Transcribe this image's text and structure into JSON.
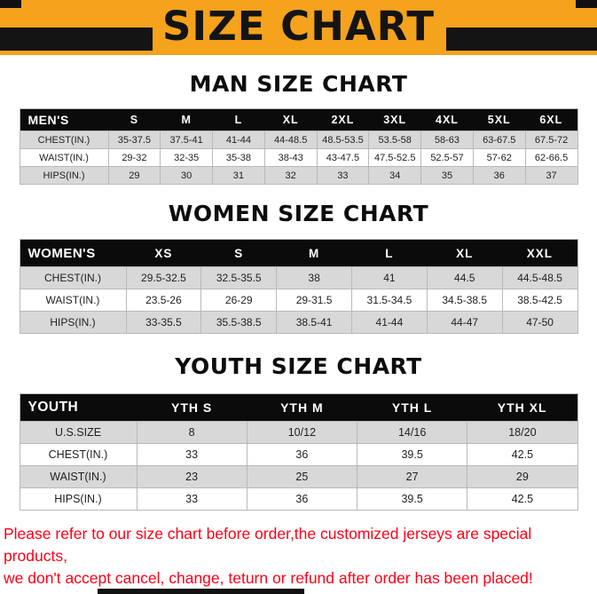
{
  "colors": {
    "banner_bg": "#F5A21D",
    "banner_text": "#141414",
    "bar": "#141414",
    "thead_bg": "#0B0B0B",
    "thead_text": "#FFFFFF",
    "row_alt": "#D8D8D8",
    "row": "#FFFFFF",
    "border": "#B9B9B9",
    "footer": "#FF0016"
  },
  "banner": {
    "title": "SIZE CHART"
  },
  "sections": [
    {
      "heading": "MAN SIZE CHART",
      "table": {
        "header": [
          "MEN'S",
          "S",
          "M",
          "L",
          "XL",
          "2XL",
          "3XL",
          "4XL",
          "5XL",
          "6XL"
        ],
        "rows": [
          [
            "CHEST(IN.)",
            "35-37.5",
            "37.5-41",
            "41-44",
            "44-48.5",
            "48.5-53.5",
            "53.5-58",
            "58-63",
            "63-67.5",
            "67.5-72"
          ],
          [
            "WAIST(IN.)",
            "29-32",
            "32-35",
            "35-38",
            "38-43",
            "43-47.5",
            "47.5-52.5",
            "52.5-57",
            "57-62",
            "62-66.5"
          ],
          [
            "HIPS(IN.)",
            "29",
            "30",
            "31",
            "32",
            "33",
            "34",
            "35",
            "36",
            "37"
          ]
        ]
      }
    },
    {
      "heading": "WOMEN SIZE CHART",
      "table": {
        "header": [
          "WOMEN'S",
          "XS",
          "S",
          "M",
          "L",
          "XL",
          "XXL"
        ],
        "rows": [
          [
            "CHEST(IN.)",
            "29.5-32.5",
            "32.5-35.5",
            "38",
            "41",
            "44.5",
            "44.5-48.5"
          ],
          [
            "WAIST(IN.)",
            "23.5-26",
            "26-29",
            "29-31.5",
            "31.5-34.5",
            "34.5-38.5",
            "38.5-42.5"
          ],
          [
            "HIPS(IN.)",
            "33-35.5",
            "35.5-38.5",
            "38.5-41",
            "41-44",
            "44-47",
            "47-50"
          ]
        ]
      }
    },
    {
      "heading": "YOUTH SIZE CHART",
      "table": {
        "header": [
          "YOUTH",
          "YTH S",
          "YTH M",
          "YTH L",
          "YTH XL"
        ],
        "rows": [
          [
            "U.S.SIZE",
            "8",
            "10/12",
            "14/16",
            "18/20"
          ],
          [
            "CHEST(IN.)",
            "33",
            "36",
            "39.5",
            "42.5"
          ],
          [
            "WAIST(IN.)",
            "23",
            "25",
            "27",
            "29"
          ],
          [
            "HIPS(IN.)",
            "33",
            "36",
            "39.5",
            "42.5"
          ]
        ]
      }
    }
  ],
  "footer": {
    "lines": [
      "Please refer to our size chart before order,the customized jerseys are special products,",
      "we don't accept cancel, change, teturn or refund after order has been placed!"
    ]
  }
}
